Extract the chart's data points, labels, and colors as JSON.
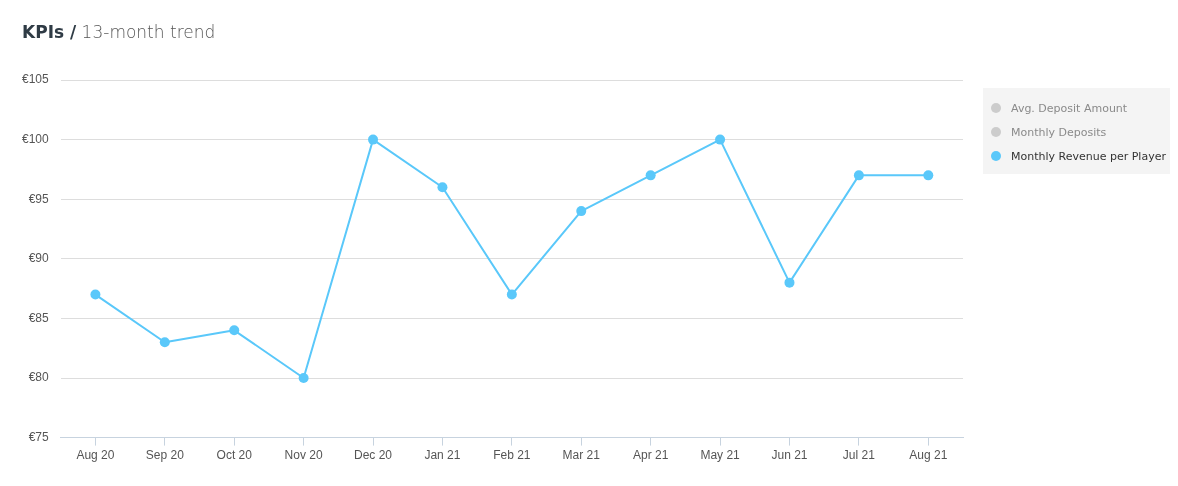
{
  "chart_data": {
    "type": "line",
    "title": "KPIs /",
    "subtitle": "13-month trend",
    "categories": [
      "Aug 20",
      "Sep 20",
      "Oct 20",
      "Nov 20",
      "Dec 20",
      "Jan 21",
      "Feb 21",
      "Mar 21",
      "Apr 21",
      "May 21",
      "Jun 21",
      "Jul 21",
      "Aug 21"
    ],
    "series": [
      {
        "name": "Avg. Deposit Amount",
        "color": "#cccccc",
        "values": [
          null,
          null,
          null,
          null,
          null,
          null,
          null,
          null,
          null,
          null,
          null,
          null,
          null
        ]
      },
      {
        "name": "Monthly Deposits",
        "color": "#cccccc",
        "values": [
          null,
          null,
          null,
          null,
          null,
          null,
          null,
          null,
          null,
          null,
          null,
          null,
          null
        ]
      },
      {
        "name": "Monthly Revenue per Player",
        "color": "#5ac8fa",
        "values": [
          87,
          83,
          84,
          80,
          100,
          96,
          87,
          94,
          97,
          100,
          88,
          97,
          97
        ]
      }
    ],
    "ylim": [
      75,
      105
    ],
    "yticks": [
      {
        "value": 75,
        "label": "€75"
      },
      {
        "value": 80,
        "label": "€80"
      },
      {
        "value": 85,
        "label": "€85"
      },
      {
        "value": 90,
        "label": "€90"
      },
      {
        "value": 95,
        "label": "€95"
      },
      {
        "value": 100,
        "label": "€100"
      },
      {
        "value": 105,
        "label": "€105"
      }
    ],
    "grid": "y",
    "legend": "right",
    "marker": "circle",
    "line_style": "solid"
  }
}
